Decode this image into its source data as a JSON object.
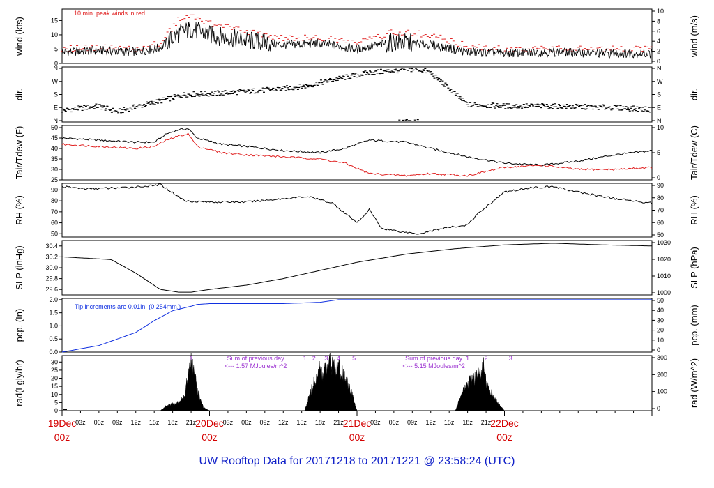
{
  "colors": {
    "accent_red": "#e02020",
    "precip_blue": "#1030e0",
    "note_purple": "#9b30d0",
    "title_blue": "#1020c8",
    "date_red": "#d40000"
  },
  "title": "UW Rooftop Data for 20171218  to  20171221 @ 23:58:24  (UTC)",
  "chart_data": [
    {
      "type": "line",
      "id": "wind",
      "ylabel_left": "wind (kts)",
      "ylabel_right": "wind (m/s)",
      "ylim": [
        0,
        19
      ],
      "yticks": [
        "0",
        "5",
        "10",
        "15"
      ],
      "right_ticks": [
        "0",
        "2",
        "4",
        "6",
        "8",
        "10"
      ],
      "annotation": "10 min. peak winds in red",
      "x_hours": [
        0,
        6,
        12,
        16,
        19,
        21,
        24,
        30,
        36,
        42,
        48,
        54,
        60,
        66,
        72,
        80,
        88,
        96
      ],
      "series": [
        {
          "values": [
            4,
            4.5,
            4,
            5.5,
            10.5,
            12,
            10,
            8,
            6.5,
            7,
            5,
            7.5,
            6.5,
            4,
            3.5,
            4,
            3.5,
            3.5
          ]
        },
        {
          "values": [
            5,
            5.5,
            5,
            7,
            15.5,
            17,
            14,
            11,
            9,
            9,
            7,
            11,
            10,
            6,
            5,
            5,
            5,
            5
          ]
        }
      ]
    },
    {
      "type": "scatter",
      "id": "direction",
      "ylabel_left": "dir.",
      "ylabel_right": "dir.",
      "yticks": [
        "N",
        "E",
        "S",
        "W",
        "N"
      ],
      "right_ticks": [
        "N",
        "E",
        "S",
        "W",
        "N"
      ],
      "x_hours": [
        0,
        3,
        6,
        9,
        12,
        16,
        20,
        24,
        30,
        36,
        40,
        44,
        50,
        56,
        58,
        60,
        66,
        72,
        78,
        84,
        90,
        96
      ],
      "series": [
        {
          "values": [
            70,
            85,
            100,
            60,
            95,
            135,
            180,
            185,
            200,
            220,
            240,
            280,
            330,
            350,
            355,
            330,
            110,
            100,
            100,
            95,
            90,
            75
          ]
        }
      ]
    },
    {
      "type": "line",
      "id": "temperature",
      "ylabel_left": "Tair/Tdew (F)",
      "ylabel_right": "Tair/Tdew (C)",
      "ylim": [
        25,
        51
      ],
      "yticks": [
        "25",
        "30",
        "35",
        "40",
        "45",
        "50"
      ],
      "right_ticks": [
        "0",
        "5",
        "10"
      ],
      "x_hours": [
        0,
        6,
        12,
        15,
        17,
        19,
        20.5,
        22,
        26,
        30,
        36,
        42,
        46,
        50,
        56,
        60,
        66,
        72,
        78,
        84,
        90,
        96
      ],
      "series": [
        {
          "values": [
            45,
            44,
            43,
            43,
            47,
            49,
            49.5,
            45,
            42,
            41,
            39,
            38,
            40,
            44,
            43,
            40,
            36,
            33,
            32,
            34,
            37,
            39
          ]
        },
        {
          "values": [
            42,
            41,
            40,
            41,
            44,
            46,
            47,
            41,
            38,
            37,
            36,
            35,
            33,
            28,
            27,
            28,
            27,
            31,
            32,
            30,
            30,
            31
          ]
        }
      ]
    },
    {
      "type": "line",
      "id": "humidity",
      "ylabel_left": "RH (%)",
      "ylabel_right": "RH (%)",
      "ylim": [
        47,
        96
      ],
      "yticks": [
        "50",
        "60",
        "70",
        "80",
        "90"
      ],
      "right_ticks": [
        "50",
        "60",
        "70",
        "80",
        "90"
      ],
      "x_hours": [
        0,
        4,
        10,
        15,
        16,
        20,
        24,
        30,
        36,
        40,
        44,
        48,
        50,
        52,
        55,
        58,
        62,
        66,
        68,
        72,
        76,
        80,
        84,
        90,
        96
      ],
      "series": [
        {
          "values": [
            93,
            91,
            92,
            94,
            95,
            80,
            79,
            79,
            82,
            84,
            78,
            60,
            72,
            55,
            52,
            50,
            55,
            58,
            70,
            88,
            92,
            93,
            88,
            82,
            78
          ]
        }
      ]
    },
    {
      "type": "line",
      "id": "pressure",
      "ylabel_left": "SLP (inHg)",
      "ylabel_right": "SLP (hPa)",
      "ylim": [
        29.5,
        30.5
      ],
      "yticks": [
        "29.6",
        "29.8",
        "30.0",
        "30.2",
        "30.4"
      ],
      "right_ticks": [
        "1000",
        "1010",
        "1020",
        "1030"
      ],
      "x_hours": [
        0,
        8,
        12,
        16,
        19,
        21,
        24,
        30,
        36,
        42,
        48,
        56,
        64,
        72,
        80,
        88,
        96
      ],
      "series": [
        {
          "values": [
            30.2,
            30.15,
            29.9,
            29.6,
            29.55,
            29.55,
            29.6,
            29.68,
            29.8,
            29.95,
            30.1,
            30.25,
            30.35,
            30.42,
            30.45,
            30.42,
            30.4
          ]
        }
      ]
    },
    {
      "type": "area",
      "id": "precipitation",
      "ylabel_left": "pcp. (In)",
      "ylabel_right": "pcp. (mm)",
      "ylim": [
        0,
        2.05
      ],
      "yticks": [
        "0.0",
        "0.5",
        "1.0",
        "1.5",
        "2.0"
      ],
      "right_ticks": [
        "0",
        "10",
        "20",
        "30",
        "40",
        "50"
      ],
      "annotation": "Tip increments are 0.01in. (0.254mm.)",
      "x_hours": [
        0,
        6,
        9,
        12,
        15,
        18,
        21,
        22,
        24,
        30,
        36,
        42,
        45,
        48,
        54,
        60,
        96
      ],
      "series": [
        {
          "values": [
            0,
            0.25,
            0.5,
            0.75,
            1.2,
            1.58,
            1.75,
            1.82,
            1.85,
            1.85,
            1.85,
            1.9,
            2.0,
            2.0,
            2.0,
            2.0,
            2.0
          ]
        }
      ]
    },
    {
      "type": "area",
      "id": "radiation",
      "ylabel_left": "rad(Lgly/hr)",
      "ylabel_right": "rad (W/m^2)",
      "ylim": [
        0,
        34
      ],
      "yticks": [
        "0",
        "5",
        "10",
        "15",
        "20",
        "25",
        "30"
      ],
      "right_ticks": [
        "0",
        "100",
        "200",
        "300"
      ],
      "peak_labels": [
        "1",
        "1",
        "2",
        "3",
        "4",
        "5",
        "1",
        "2",
        "3"
      ],
      "notes": [
        {
          "line1": "Sum of previous day",
          "line2": "<--- 1.57 MJoules/m^2"
        },
        {
          "line1": "Sum of previous day",
          "line2": "<--- 5.15 MJoules/m^2"
        }
      ],
      "x_hours": [
        0,
        16,
        17,
        18,
        19,
        20,
        20.5,
        21,
        21.5,
        22,
        23,
        24,
        39.5,
        40.5,
        41.5,
        42,
        42.5,
        43,
        43.5,
        44,
        45,
        46,
        47,
        48,
        64,
        65,
        66,
        67,
        68,
        68.5,
        69,
        70,
        71,
        72
      ],
      "series": [
        {
          "values": [
            0,
            0,
            3,
            4,
            5,
            9,
            22,
            29,
            24,
            12,
            2,
            0,
            0,
            12,
            22,
            26,
            20,
            28,
            30,
            28,
            26,
            20,
            12,
            0,
            0,
            10,
            16,
            20,
            22,
            30,
            18,
            10,
            4,
            0
          ]
        }
      ]
    },
    {
      "id": "time_axis",
      "x_range_hours": [
        0,
        96
      ],
      "hour_ticks": [
        "03z",
        "06z",
        "09z",
        "12z",
        "15z",
        "18z",
        "21z",
        "03z",
        "06z",
        "09z",
        "12z",
        "15z",
        "18z",
        "21z",
        "03z",
        "06z",
        "09z",
        "12z",
        "15z",
        "18z",
        "21z"
      ],
      "day_labels": [
        {
          "date": "19Dec",
          "hour": "00z"
        },
        {
          "date": "20Dec",
          "hour": "00z"
        },
        {
          "date": "21Dec",
          "hour": "00z"
        },
        {
          "date": "22Dec",
          "hour": "00z"
        }
      ]
    }
  ]
}
